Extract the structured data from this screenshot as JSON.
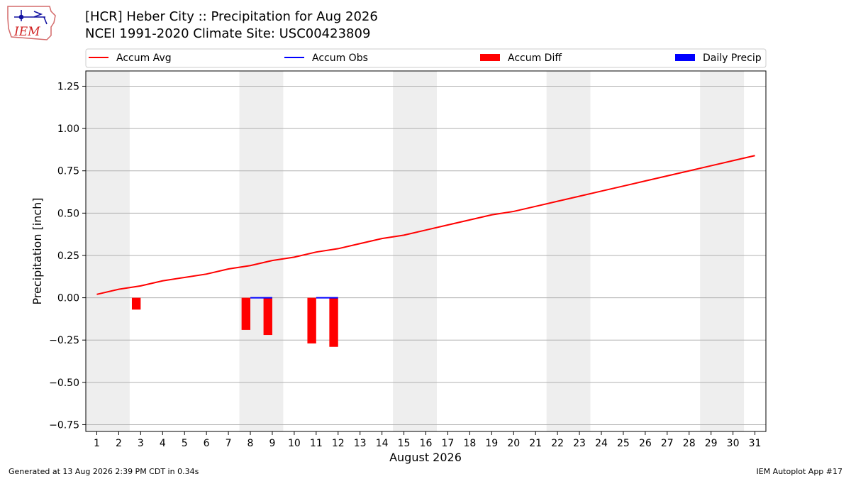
{
  "header": {
    "logo_text": "IEM",
    "title_line1": "[HCR] Heber City :: Precipitation for Aug 2026",
    "title_line2": "NCEI 1991-2020 Climate Site: USC00423809"
  },
  "footer": {
    "left": "Generated at 13 Aug 2026 2:39 PM CDT in 0.34s",
    "right": "IEM Autoplot App #17"
  },
  "colors": {
    "accum_avg": "#ff0000",
    "accum_obs": "#0000ff",
    "accum_diff": "#ff0000",
    "daily_precip": "#0000ff",
    "weekend_shade": "#eeeeee",
    "grid": "#b0b0b0"
  },
  "chart_data": {
    "type": "bar",
    "xlabel": "August 2026",
    "ylabel": "Precipitation [inch]",
    "x": [
      1,
      2,
      3,
      4,
      5,
      6,
      7,
      8,
      9,
      10,
      11,
      12,
      13,
      14,
      15,
      16,
      17,
      18,
      19,
      20,
      21,
      22,
      23,
      24,
      25,
      26,
      27,
      28,
      29,
      30,
      31
    ],
    "xlim": [
      0.5,
      31.5
    ],
    "ylim": [
      -0.79,
      1.34
    ],
    "yticks": [
      -0.75,
      -0.5,
      -0.25,
      0.0,
      0.25,
      0.5,
      0.75,
      1.0,
      1.25
    ],
    "ytick_labels": [
      "−0.75",
      "−0.50",
      "−0.25",
      "0.00",
      "0.25",
      "0.50",
      "0.75",
      "1.00",
      "1.25"
    ],
    "grid": "horizontal",
    "legend": {
      "placement": "top",
      "entries": [
        "Accum Avg",
        "Accum Obs",
        "Accum Diff",
        "Daily Precip"
      ]
    },
    "shaded_day_spans": [
      [
        1,
        2
      ],
      [
        8,
        9
      ],
      [
        15,
        16
      ],
      [
        22,
        23
      ],
      [
        29,
        30
      ]
    ],
    "series": [
      {
        "name": "Accum Avg",
        "kind": "line",
        "x": [
          1,
          2,
          3,
          4,
          5,
          6,
          7,
          8,
          9,
          10,
          11,
          12,
          13,
          14,
          15,
          16,
          17,
          18,
          19,
          20,
          21,
          22,
          23,
          24,
          25,
          26,
          27,
          28,
          29,
          30,
          31
        ],
        "values": [
          0.02,
          0.05,
          0.07,
          0.1,
          0.12,
          0.14,
          0.17,
          0.19,
          0.22,
          0.24,
          0.27,
          0.29,
          0.32,
          0.35,
          0.37,
          0.4,
          0.43,
          0.46,
          0.49,
          0.51,
          0.54,
          0.57,
          0.6,
          0.63,
          0.66,
          0.69,
          0.72,
          0.75,
          0.78,
          0.81,
          0.84
        ]
      },
      {
        "name": "Accum Obs",
        "kind": "step",
        "x": [
          8,
          9,
          11,
          12
        ],
        "values": [
          0.0,
          0.0,
          0.0,
          0.0
        ]
      },
      {
        "name": "Accum Diff",
        "kind": "bar",
        "x": [
          3,
          8,
          9,
          11,
          12
        ],
        "values": [
          -0.07,
          -0.19,
          -0.22,
          -0.27,
          -0.29
        ]
      },
      {
        "name": "Daily Precip",
        "kind": "bar",
        "x": [],
        "values": []
      }
    ]
  }
}
